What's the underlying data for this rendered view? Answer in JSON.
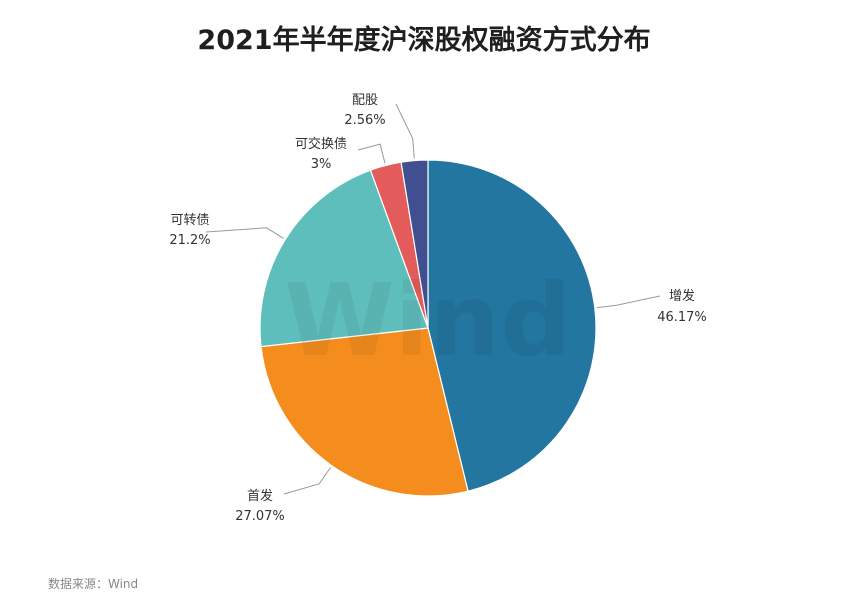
{
  "chart_data": {
    "type": "pie",
    "title": "2021年半年度沪深股权融资方式分布",
    "slices": [
      {
        "label": "增发",
        "value": 46.17,
        "value_label": "46.17%",
        "color": "#23769f"
      },
      {
        "label": "首发",
        "value": 27.07,
        "value_label": "27.07%",
        "color": "#f48d1d"
      },
      {
        "label": "可转债",
        "value": 21.2,
        "value_label": "21.2%",
        "color": "#5ebebc"
      },
      {
        "label": "可交换债",
        "value": 3,
        "value_label": "3%",
        "color": "#e45b5b"
      },
      {
        "label": "配股",
        "value": 2.56,
        "value_label": "2.56%",
        "color": "#3f4f8f"
      }
    ],
    "start_angle": "12 o'clock",
    "direction": "clockwise"
  },
  "watermark": "Wind",
  "source": "数据来源：Wind"
}
